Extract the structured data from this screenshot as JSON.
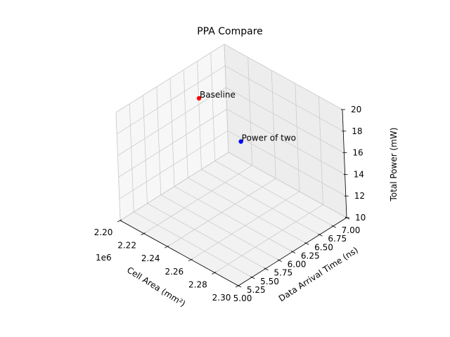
{
  "chart_data": {
    "type": "scatter",
    "projection": "3d",
    "title": "PPA Compare",
    "xlabel": "Cell Area (mm²)",
    "ylabel": "Data Arrival Time (ns)",
    "zlabel": "Total Power (mW)",
    "x_offset_label": "1e6",
    "xlim": [
      2.2,
      2.3
    ],
    "ylim": [
      5.0,
      7.0
    ],
    "zlim": [
      10,
      20
    ],
    "xticks": [
      "2.20",
      "2.22",
      "2.24",
      "2.26",
      "2.28",
      "2.30"
    ],
    "yticks": [
      "5.00",
      "5.25",
      "5.50",
      "5.75",
      "6.00",
      "6.25",
      "6.50",
      "6.75",
      "7.00"
    ],
    "zticks": [
      "10",
      "12",
      "14",
      "16",
      "18",
      "20"
    ],
    "grid": true,
    "points": [
      {
        "label": "Baseline",
        "x": 2.2075,
        "y": 6.35,
        "z": 17.5,
        "color": "#ff0000"
      },
      {
        "label": "Power of two",
        "x": 2.2375,
        "y": 6.45,
        "z": 15.0,
        "color": "#0000ff"
      }
    ]
  }
}
